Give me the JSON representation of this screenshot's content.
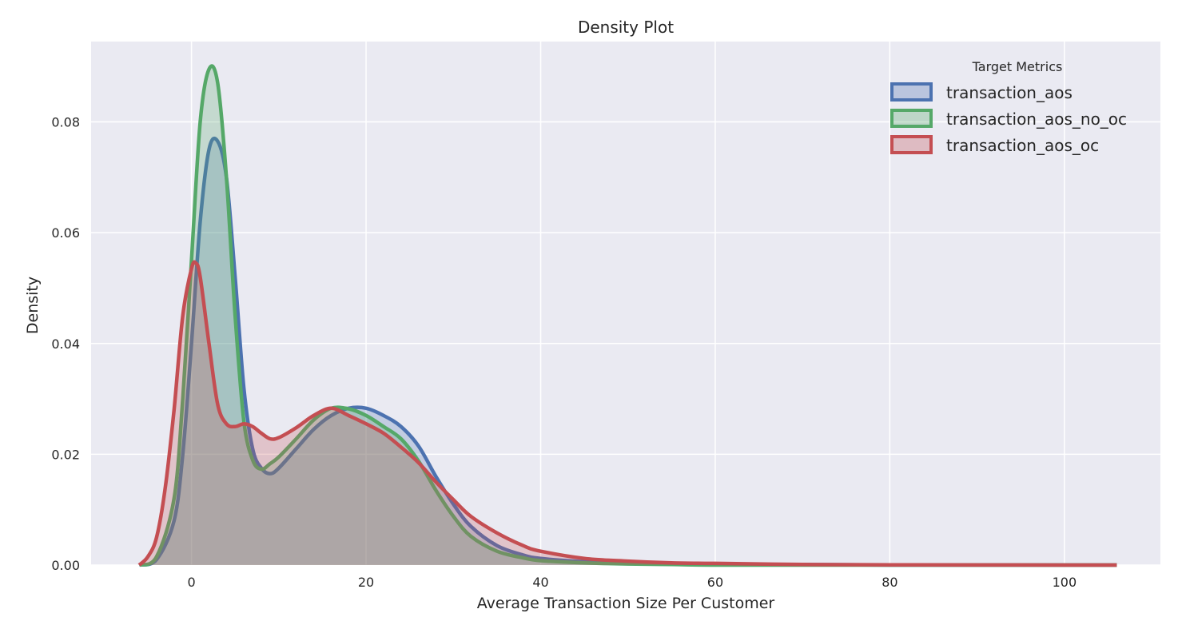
{
  "chart_data": {
    "type": "area",
    "title": "Density Plot",
    "xlabel": "Average Transaction Size Per Customer",
    "ylabel": "Density",
    "xlim": [
      -11.5,
      111
    ],
    "ylim": [
      0,
      0.0945
    ],
    "xticks": [
      0,
      20,
      40,
      60,
      80,
      100
    ],
    "yticks": [
      0.0,
      0.02,
      0.04,
      0.06,
      0.08
    ],
    "xtick_labels": [
      "0",
      "20",
      "40",
      "60",
      "80",
      "100"
    ],
    "ytick_labels": [
      "0.00",
      "0.02",
      "0.04",
      "0.06",
      "0.08"
    ],
    "grid": true,
    "legend": {
      "title": "Target Metrics",
      "placement": "top-right"
    },
    "series": [
      {
        "name": "transaction_aos",
        "color": "#4c72b0",
        "x": [
          -6,
          -4,
          -2,
          -1,
          0,
          1,
          2,
          3,
          4,
          5,
          6,
          7,
          8,
          9,
          10,
          12,
          14,
          16,
          18,
          20,
          22,
          24,
          26,
          28,
          30,
          32,
          35,
          38,
          40,
          45,
          50,
          55,
          60,
          70,
          80,
          90,
          100,
          106
        ],
        "y": [
          0,
          0.001,
          0.008,
          0.02,
          0.04,
          0.062,
          0.075,
          0.0765,
          0.07,
          0.052,
          0.032,
          0.021,
          0.0175,
          0.0165,
          0.0175,
          0.021,
          0.0245,
          0.027,
          0.0283,
          0.0283,
          0.027,
          0.025,
          0.0215,
          0.016,
          0.011,
          0.007,
          0.0035,
          0.0018,
          0.0012,
          0.0006,
          0.0003,
          0.0002,
          0.0001,
          0.0001,
          0,
          0,
          0,
          0
        ]
      },
      {
        "name": "transaction_aos_no_oc",
        "color": "#55a868",
        "x": [
          -6,
          -4,
          -2,
          -1,
          0,
          1,
          2,
          3,
          4,
          5,
          6,
          7,
          8,
          9,
          10,
          12,
          14,
          16,
          18,
          20,
          22,
          24,
          26,
          28,
          30,
          32,
          35,
          38,
          40,
          45,
          50,
          55,
          60,
          70,
          80,
          90,
          100,
          106
        ],
        "y": [
          0,
          0.0015,
          0.012,
          0.03,
          0.055,
          0.08,
          0.0895,
          0.087,
          0.07,
          0.045,
          0.026,
          0.019,
          0.0173,
          0.0183,
          0.0195,
          0.0228,
          0.0262,
          0.0283,
          0.0282,
          0.027,
          0.025,
          0.0228,
          0.0188,
          0.0135,
          0.0088,
          0.0052,
          0.0025,
          0.0013,
          0.0008,
          0.0004,
          0.0002,
          0.0001,
          0,
          0,
          0,
          0,
          0,
          0
        ]
      },
      {
        "name": "transaction_aos_oc",
        "color": "#c44e52",
        "x": [
          -6,
          -5,
          -4,
          -3,
          -2,
          -1,
          0,
          0.5,
          1,
          2,
          3,
          4,
          5,
          6,
          7,
          8,
          9,
          10,
          12,
          14,
          16,
          18,
          20,
          22,
          24,
          26,
          28,
          30,
          32,
          35,
          38,
          40,
          45,
          50,
          55,
          60,
          70,
          80,
          90,
          100,
          106
        ],
        "y": [
          0,
          0.0015,
          0.005,
          0.014,
          0.028,
          0.045,
          0.0535,
          0.0545,
          0.052,
          0.04,
          0.029,
          0.0255,
          0.025,
          0.0255,
          0.025,
          0.0238,
          0.0228,
          0.023,
          0.0248,
          0.027,
          0.0283,
          0.027,
          0.0255,
          0.0238,
          0.0213,
          0.0185,
          0.015,
          0.0118,
          0.0088,
          0.0058,
          0.0035,
          0.0025,
          0.0012,
          0.0007,
          0.0004,
          0.0003,
          0.0001,
          5e-05,
          2e-05,
          0,
          0
        ]
      }
    ]
  }
}
